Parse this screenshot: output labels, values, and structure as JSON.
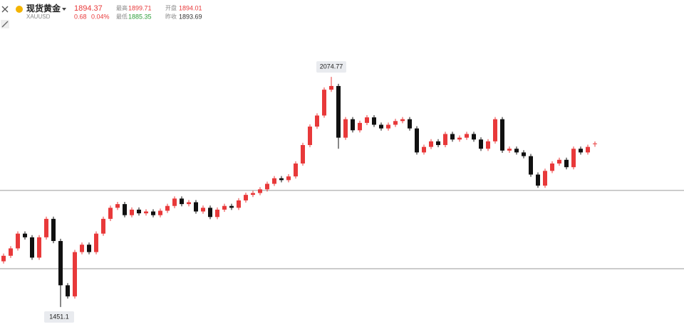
{
  "header": {
    "name": "现货黄金",
    "symbol": "XAUUSD",
    "last": "1894.37",
    "change": "0.68",
    "change_pct": "0.04%",
    "high_label": "最高",
    "high": "1899.71",
    "open_label": "开盘",
    "open": "1894.01",
    "low_label": "最低",
    "low": "1885.35",
    "prev_close_label": "昨收",
    "prev_close": "1893.69"
  },
  "chart_data": {
    "type": "candlestick",
    "up_color": "#e8393a",
    "down_color": "#111111",
    "ylim": [
      1397,
      2283
    ],
    "max_label": "2074.77",
    "min_label": "1451.1",
    "hlines": [
      1767,
      1555
    ],
    "open": [
      1575,
      1590,
      1610,
      1650,
      1640,
      1585,
      1640,
      1690,
      1630,
      1510,
      1480,
      1600,
      1620,
      1600,
      1650,
      1690,
      1720,
      1730,
      1700,
      1715,
      1705,
      1710,
      1700,
      1712,
      1725,
      1745,
      1730,
      1735,
      1710,
      1720,
      1695,
      1715,
      1725,
      1720,
      1740,
      1755,
      1760,
      1770,
      1785,
      1800,
      1795,
      1805,
      1840,
      1890,
      1940,
      1970,
      2040,
      2050,
      1910,
      1960,
      1930,
      1950,
      1965,
      1945,
      1935,
      1945,
      1955,
      1960,
      1935,
      1870,
      1885,
      1900,
      1890,
      1920,
      1905,
      1910,
      1920,
      1905,
      1880,
      1900,
      1960,
      1875,
      1880,
      1870,
      1860,
      1810,
      1780,
      1820,
      1840,
      1850,
      1830,
      1880,
      1870,
      1894.01
    ],
    "high": [
      1596,
      1616,
      1656,
      1656,
      1646,
      1646,
      1696,
      1696,
      1636,
      1516,
      1606,
      1626,
      1626,
      1656,
      1696,
      1726,
      1736,
      1736,
      1721,
      1721,
      1716,
      1716,
      1718,
      1731,
      1751,
      1751,
      1741,
      1741,
      1726,
      1726,
      1721,
      1731,
      1731,
      1746,
      1761,
      1766,
      1776,
      1791,
      1806,
      1806,
      1811,
      1846,
      1896,
      1946,
      1976,
      2046,
      2074.77,
      2056,
      1966,
      1966,
      1956,
      1971,
      1971,
      1951,
      1951,
      1961,
      1966,
      1966,
      1941,
      1891,
      1906,
      1906,
      1926,
      1926,
      1916,
      1926,
      1926,
      1911,
      1906,
      1966,
      1966,
      1886,
      1886,
      1876,
      1866,
      1816,
      1826,
      1846,
      1856,
      1856,
      1886,
      1886,
      1891,
      1899.71
    ],
    "low": [
      1569,
      1584,
      1604,
      1634,
      1579,
      1579,
      1634,
      1624,
      1451.1,
      1474,
      1474,
      1594,
      1594,
      1594,
      1644,
      1684,
      1714,
      1694,
      1694,
      1699,
      1699,
      1694,
      1694,
      1706,
      1719,
      1724,
      1724,
      1704,
      1704,
      1689,
      1689,
      1709,
      1714,
      1714,
      1734,
      1749,
      1754,
      1764,
      1779,
      1789,
      1789,
      1799,
      1834,
      1884,
      1934,
      1964,
      2034,
      1880,
      1904,
      1924,
      1924,
      1944,
      1939,
      1929,
      1929,
      1939,
      1949,
      1929,
      1864,
      1864,
      1879,
      1884,
      1884,
      1899,
      1899,
      1904,
      1899,
      1874,
      1874,
      1894,
      1869,
      1869,
      1864,
      1854,
      1804,
      1774,
      1774,
      1814,
      1834,
      1824,
      1824,
      1864,
      1864,
      1885.35
    ],
    "close": [
      1590,
      1610,
      1650,
      1640,
      1585,
      1640,
      1690,
      1630,
      1510,
      1480,
      1600,
      1620,
      1600,
      1650,
      1690,
      1720,
      1730,
      1700,
      1715,
      1705,
      1710,
      1700,
      1712,
      1725,
      1745,
      1730,
      1735,
      1710,
      1720,
      1695,
      1715,
      1725,
      1720,
      1740,
      1755,
      1760,
      1770,
      1785,
      1800,
      1795,
      1805,
      1840,
      1890,
      1940,
      1970,
      2040,
      2050,
      1910,
      1960,
      1930,
      1950,
      1965,
      1945,
      1935,
      1945,
      1955,
      1960,
      1935,
      1870,
      1885,
      1900,
      1890,
      1920,
      1905,
      1910,
      1920,
      1905,
      1880,
      1900,
      1960,
      1875,
      1880,
      1870,
      1860,
      1810,
      1780,
      1820,
      1840,
      1850,
      1830,
      1880,
      1870,
      1885,
      1894.37
    ]
  }
}
